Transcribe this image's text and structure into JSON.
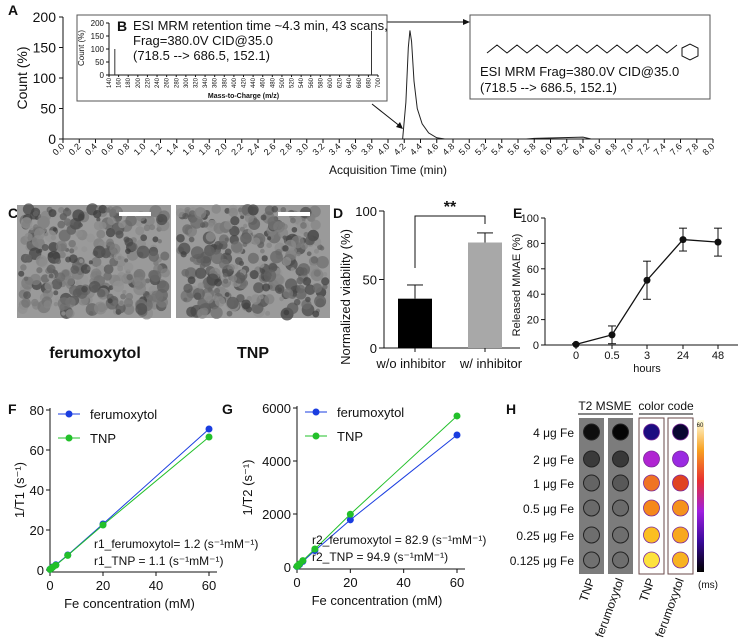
{
  "panel_labels": {
    "A": "A",
    "B": "B",
    "C": "C",
    "D": "D",
    "E": "E",
    "F": "F",
    "G": "G",
    "H": "H"
  },
  "chart_data": [
    {
      "id": "A",
      "type": "line",
      "xlabel": "Acquisition Time (min)",
      "ylabel": "Count (%)",
      "xlim": [
        0,
        8
      ],
      "ylim": [
        0,
        200
      ],
      "xticks": [
        "0.0",
        "0.2",
        "0.4",
        "0.6",
        "0.8",
        "1.0",
        "1.2",
        "1.4",
        "1.6",
        "1.8",
        "2.0",
        "2.2",
        "2.4",
        "2.6",
        "2.8",
        "3.0",
        "3.2",
        "3.4",
        "3.6",
        "3.8",
        "4.0",
        "4.2",
        "4.4",
        "4.6",
        "4.8",
        "5.0",
        "5.2",
        "5.4",
        "5.6",
        "5.8",
        "6.0",
        "6.2",
        "6.4",
        "6.6",
        "6.8",
        "7.0",
        "7.2",
        "7.4",
        "7.6",
        "7.8",
        "8.0"
      ],
      "yticks": [
        "0",
        "50",
        "100",
        "150",
        "200"
      ],
      "x": [
        0,
        4.18,
        4.22,
        4.25,
        4.27,
        4.29,
        4.32,
        4.36,
        4.42,
        4.5,
        4.6,
        4.7,
        5.7,
        5.8,
        6.4,
        6.5,
        8.0
      ],
      "y": [
        0,
        0,
        60,
        150,
        178,
        160,
        95,
        50,
        25,
        10,
        2,
        0,
        0,
        1,
        3,
        0,
        0
      ],
      "annotation": {
        "title": "ESI MRM Frag=380.0V CID@35.0",
        "transition": "(718.5 --> 686.5, 152.1)"
      }
    },
    {
      "id": "B",
      "type": "bar",
      "title": "ESI MRM retention time ~4.3 min, 43 scans,",
      "subtitle1": "Frag=380.0V CID@35.0",
      "subtitle2": "(718.5 --> 686.5, 152.1)",
      "xlabel": "Mass-to-Charge (m/z)",
      "ylabel": "Count (%)",
      "xlim": [
        140,
        700
      ],
      "ylim": [
        0,
        200
      ],
      "xticks": [
        "140",
        "160",
        "180",
        "200",
        "220",
        "240",
        "260",
        "280",
        "300",
        "320",
        "340",
        "360",
        "380",
        "400",
        "420",
        "440",
        "460",
        "480",
        "500",
        "520",
        "540",
        "560",
        "580",
        "600",
        "620",
        "640",
        "660",
        "680",
        "700"
      ],
      "yticks": [
        "0",
        "50",
        "100",
        "150",
        "200"
      ],
      "peaks": [
        {
          "mz": 152.1,
          "count": 100
        },
        {
          "mz": 686.5,
          "count": 170
        }
      ]
    },
    {
      "id": "D",
      "type": "bar",
      "ylabel": "Normalized viability (%)",
      "ylim": [
        0,
        100
      ],
      "yticks": [
        "0",
        "50",
        "100"
      ],
      "categories": [
        "w/o inhibitor",
        "w/ inhibitor"
      ],
      "values": [
        36,
        77
      ],
      "errors": [
        10,
        7
      ],
      "colors": [
        "#000000",
        "#a8a8a8"
      ],
      "significance": "**"
    },
    {
      "id": "E",
      "type": "line",
      "xlabel": "hours",
      "ylabel": "Released MMAE (%)",
      "ylim": [
        0,
        100
      ],
      "yticks": [
        "0",
        "20",
        "40",
        "60",
        "80",
        "100"
      ],
      "categories": [
        "0",
        "0.5",
        "3",
        "24",
        "48"
      ],
      "values": [
        0.5,
        8,
        51,
        83,
        81
      ],
      "errors": [
        0.5,
        7,
        15,
        9,
        11
      ]
    },
    {
      "id": "F",
      "type": "scatter",
      "xlabel": "Fe concentration (mM)",
      "ylabel": "1/T1 (s⁻¹)",
      "xlim": [
        0,
        60
      ],
      "ylim": [
        0,
        80
      ],
      "xticks": [
        "0",
        "20",
        "40",
        "60"
      ],
      "yticks": [
        "0",
        "20",
        "40",
        "60",
        "80"
      ],
      "legend": "top-left",
      "series": [
        {
          "name": "ferumoxytol",
          "color": "#1a3de0",
          "x": [
            0,
            0.5,
            1,
            2.2,
            6.7,
            20,
            60
          ],
          "y": [
            0.3,
            0.9,
            1.5,
            2.6,
            7.5,
            23,
            70.5
          ]
        },
        {
          "name": "TNP",
          "color": "#22c02a",
          "x": [
            0,
            0.5,
            1,
            2.2,
            6.7,
            20,
            60
          ],
          "y": [
            0.3,
            0.8,
            1.4,
            2.4,
            7.3,
            22.5,
            66.5
          ]
        }
      ],
      "annotations": [
        "r1_ferumoxytol= 1.2 (s⁻¹mM⁻¹)",
        "r1_TNP = 1.1 (s⁻¹mM⁻¹)"
      ]
    },
    {
      "id": "G",
      "type": "scatter",
      "xlabel": "Fe concentration (mM)",
      "ylabel": "1/T2 (s⁻¹)",
      "xlim": [
        0,
        60
      ],
      "ylim": [
        0,
        6000
      ],
      "xticks": [
        "0",
        "20",
        "40",
        "60"
      ],
      "yticks": [
        "0",
        "2000",
        "4000",
        "6000"
      ],
      "legend": "top-left",
      "series": [
        {
          "name": "ferumoxytol",
          "color": "#1a3de0",
          "x": [
            0,
            0.5,
            1,
            2.2,
            6.7,
            20,
            60
          ],
          "y": [
            20,
            60,
            100,
            210,
            620,
            1780,
            4980
          ]
        },
        {
          "name": "TNP",
          "color": "#22c02a",
          "x": [
            0,
            0.5,
            1,
            2.2,
            6.7,
            20,
            60
          ],
          "y": [
            25,
            70,
            120,
            240,
            680,
            1990,
            5700
          ]
        }
      ],
      "annotations": [
        "r2_ferumoxytol = 82.9 (s⁻¹mM⁻¹)",
        "r2_TNP = 94.9 (s⁻¹mM⁻¹)"
      ]
    },
    {
      "id": "H",
      "type": "heatmap",
      "group_labels": [
        "T2 MSME",
        "color code"
      ],
      "rows": [
        "4 μg Fe",
        "2 μg Fe",
        "1 μg Fe",
        "0.5 μg Fe",
        "0.25 μg Fe",
        "0.125 μg Fe"
      ],
      "columns": [
        "TNP",
        "ferumoxytol",
        "TNP",
        "ferumoxytol"
      ],
      "gray_spots": [
        [
          "#0e0e0e",
          "#3a3a3a",
          "#646464",
          "#6a6a6a",
          "#6e6e6e",
          "#707070"
        ],
        [
          "#050505",
          "#383838",
          "#585858",
          "#6a6a6a",
          "#6e6e6e",
          "#6e6e6e"
        ]
      ],
      "color_spots": [
        [
          "#1c0c80",
          "#b024d2",
          "#f07424",
          "#f5881c",
          "#fbbf22",
          "#fde23e"
        ],
        [
          "#0a0632",
          "#9a2ae2",
          "#e04322",
          "#f5921e",
          "#f8a81e",
          "#f8b222"
        ]
      ],
      "colorbar": {
        "min": "1",
        "max": "60",
        "unit": "(ms)"
      }
    }
  ],
  "panel_C": {
    "labels": [
      "ferumoxytol",
      "TNP"
    ]
  }
}
